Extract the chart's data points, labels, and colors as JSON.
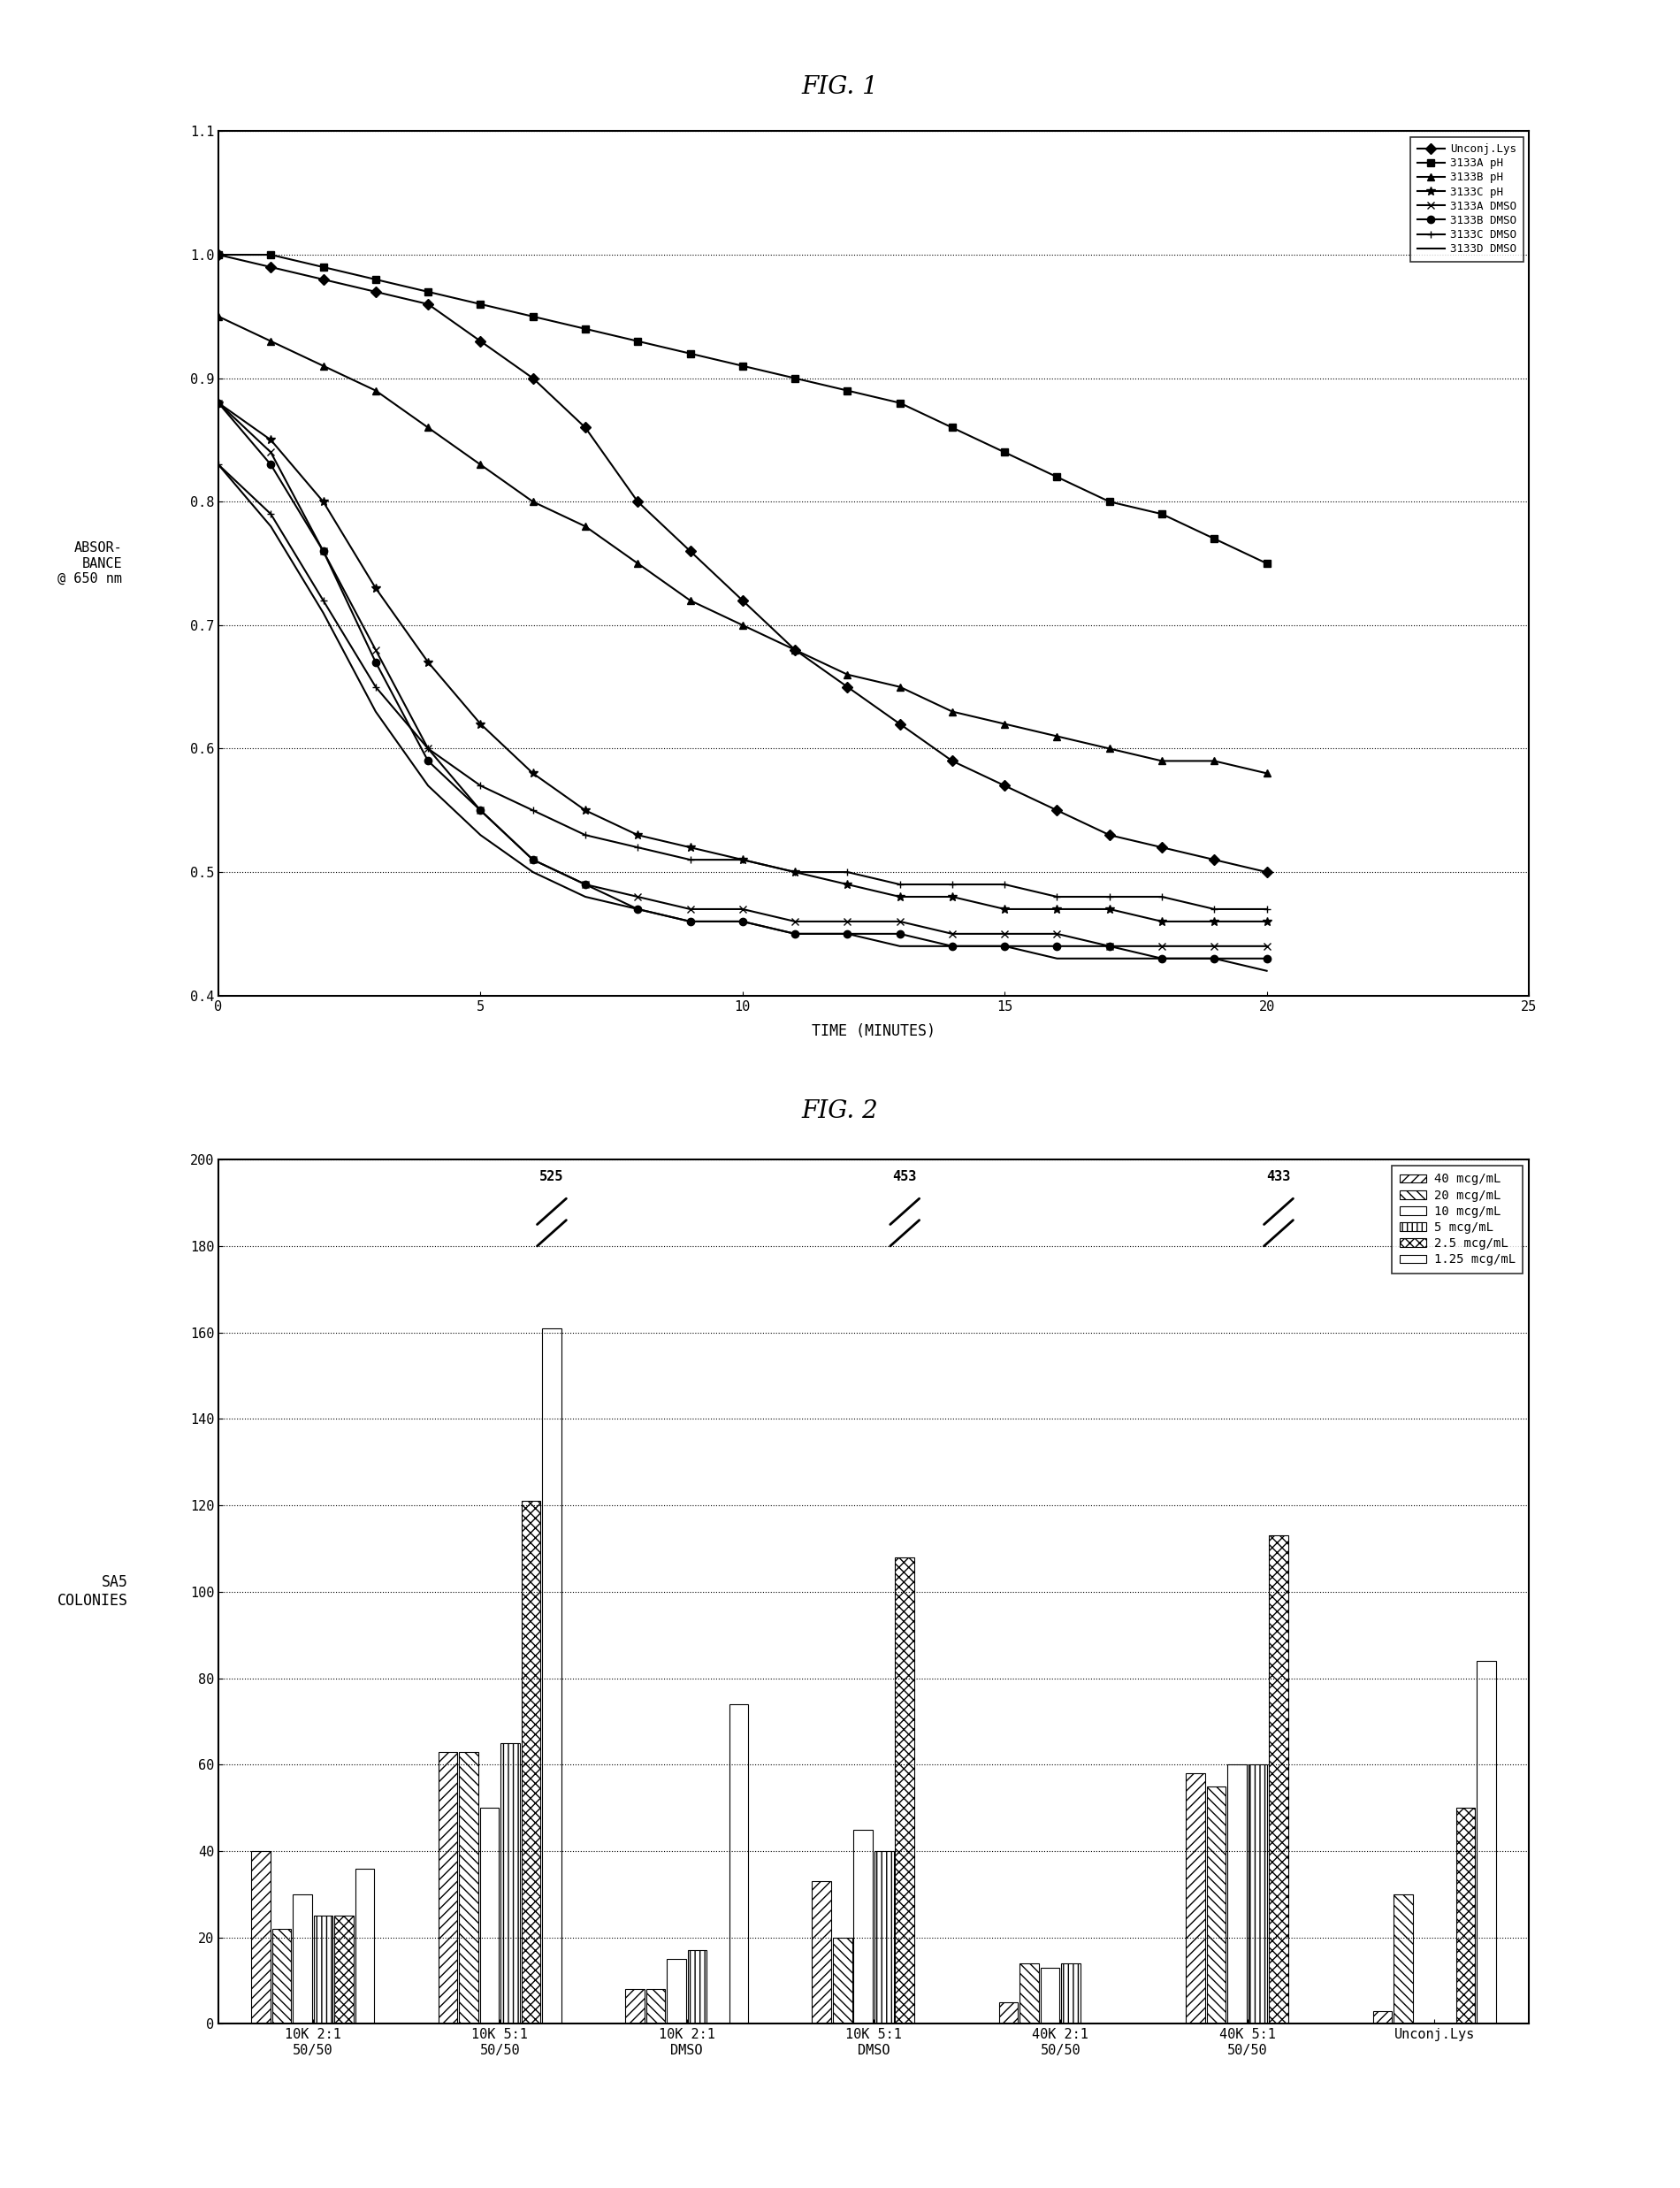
{
  "fig1_title": "FIG. 1",
  "fig2_title": "FIG. 2",
  "fig1_xlabel": "TIME (MINUTES)",
  "fig1_ylabel": "ABSOR-\nBANCE\n@ 650 nm",
  "fig1_xlim": [
    0,
    25
  ],
  "fig1_ylim": [
    0.4,
    1.1
  ],
  "fig1_yticks": [
    0.4,
    0.5,
    0.6,
    0.7,
    0.8,
    0.9,
    1.0,
    1.1
  ],
  "fig1_xticks": [
    0,
    5,
    10,
    15,
    20,
    25
  ],
  "series": [
    {
      "label": "Unconj.Lys",
      "marker": "D",
      "linestyle": "-",
      "color": "black",
      "x": [
        0,
        1,
        2,
        3,
        4,
        5,
        6,
        7,
        8,
        9,
        10,
        11,
        12,
        13,
        14,
        15,
        16,
        17,
        18,
        19,
        20
      ],
      "y": [
        1.0,
        0.99,
        0.98,
        0.97,
        0.96,
        0.93,
        0.9,
        0.86,
        0.8,
        0.76,
        0.72,
        0.68,
        0.65,
        0.62,
        0.59,
        0.57,
        0.55,
        0.53,
        0.52,
        0.51,
        0.5
      ]
    },
    {
      "label": "3133A pH",
      "marker": "s",
      "linestyle": "-",
      "color": "black",
      "x": [
        0,
        1,
        2,
        3,
        4,
        5,
        6,
        7,
        8,
        9,
        10,
        11,
        12,
        13,
        14,
        15,
        16,
        17,
        18,
        19,
        20
      ],
      "y": [
        1.0,
        1.0,
        0.99,
        0.98,
        0.97,
        0.96,
        0.95,
        0.94,
        0.93,
        0.92,
        0.91,
        0.9,
        0.89,
        0.88,
        0.86,
        0.84,
        0.82,
        0.8,
        0.79,
        0.77,
        0.75
      ]
    },
    {
      "label": "3133B pH",
      "marker": "^",
      "linestyle": "-",
      "color": "black",
      "x": [
        0,
        1,
        2,
        3,
        4,
        5,
        6,
        7,
        8,
        9,
        10,
        11,
        12,
        13,
        14,
        15,
        16,
        17,
        18,
        19,
        20
      ],
      "y": [
        0.95,
        0.93,
        0.91,
        0.89,
        0.86,
        0.83,
        0.8,
        0.78,
        0.75,
        0.72,
        0.7,
        0.68,
        0.66,
        0.65,
        0.63,
        0.62,
        0.61,
        0.6,
        0.59,
        0.59,
        0.58
      ]
    },
    {
      "label": "3133C pH",
      "marker": "*",
      "linestyle": "-",
      "color": "black",
      "x": [
        0,
        1,
        2,
        3,
        4,
        5,
        6,
        7,
        8,
        9,
        10,
        11,
        12,
        13,
        14,
        15,
        16,
        17,
        18,
        19,
        20
      ],
      "y": [
        0.88,
        0.85,
        0.8,
        0.73,
        0.67,
        0.62,
        0.58,
        0.55,
        0.53,
        0.52,
        0.51,
        0.5,
        0.49,
        0.48,
        0.48,
        0.47,
        0.47,
        0.47,
        0.46,
        0.46,
        0.46
      ]
    },
    {
      "label": "3133A DMSO",
      "marker": "x",
      "linestyle": "-",
      "color": "black",
      "x": [
        0,
        1,
        2,
        3,
        4,
        5,
        6,
        7,
        8,
        9,
        10,
        11,
        12,
        13,
        14,
        15,
        16,
        17,
        18,
        19,
        20
      ],
      "y": [
        0.88,
        0.84,
        0.76,
        0.68,
        0.6,
        0.55,
        0.51,
        0.49,
        0.48,
        0.47,
        0.47,
        0.46,
        0.46,
        0.46,
        0.45,
        0.45,
        0.45,
        0.44,
        0.44,
        0.44,
        0.44
      ]
    },
    {
      "label": "3133B DMSO",
      "marker": "o",
      "linestyle": "-",
      "color": "black",
      "x": [
        0,
        1,
        2,
        3,
        4,
        5,
        6,
        7,
        8,
        9,
        10,
        11,
        12,
        13,
        14,
        15,
        16,
        17,
        18,
        19,
        20
      ],
      "y": [
        0.88,
        0.83,
        0.76,
        0.67,
        0.59,
        0.55,
        0.51,
        0.49,
        0.47,
        0.46,
        0.46,
        0.45,
        0.45,
        0.45,
        0.44,
        0.44,
        0.44,
        0.44,
        0.43,
        0.43,
        0.43
      ]
    },
    {
      "label": "3133C DMSO",
      "marker": "+",
      "linestyle": "-",
      "color": "black",
      "x": [
        0,
        1,
        2,
        3,
        4,
        5,
        6,
        7,
        8,
        9,
        10,
        11,
        12,
        13,
        14,
        15,
        16,
        17,
        18,
        19,
        20
      ],
      "y": [
        0.83,
        0.79,
        0.72,
        0.65,
        0.6,
        0.57,
        0.55,
        0.53,
        0.52,
        0.51,
        0.51,
        0.5,
        0.5,
        0.49,
        0.49,
        0.49,
        0.48,
        0.48,
        0.48,
        0.47,
        0.47
      ]
    },
    {
      "label": "3133D DMSO",
      "marker": "none",
      "linestyle": "-",
      "color": "black",
      "x": [
        0,
        1,
        2,
        3,
        4,
        5,
        6,
        7,
        8,
        9,
        10,
        11,
        12,
        13,
        14,
        15,
        16,
        17,
        18,
        19,
        20
      ],
      "y": [
        0.83,
        0.78,
        0.71,
        0.63,
        0.57,
        0.53,
        0.5,
        0.48,
        0.47,
        0.46,
        0.46,
        0.45,
        0.45,
        0.44,
        0.44,
        0.44,
        0.43,
        0.43,
        0.43,
        0.43,
        0.42
      ]
    }
  ],
  "fig2_ylabel": "SA5\nCOLONIES",
  "fig2_ylim": [
    0,
    200
  ],
  "fig2_yticks": [
    0,
    20,
    40,
    60,
    80,
    100,
    120,
    140,
    160,
    180,
    200
  ],
  "fig2_categories": [
    "10K 2:1\n50/50",
    "10K 5:1\n50/50",
    "10K 2:1\nDMSO",
    "10K 5:1\nDMSO",
    "40K 2:1\n50/50",
    "40K 5:1\n50/50",
    "Unconj.Lys"
  ],
  "fig2_break_bars": [
    {
      "category_idx": 1,
      "bar_idx": 5,
      "value": 525
    },
    {
      "category_idx": 3,
      "bar_idx": 4,
      "value": 453
    },
    {
      "category_idx": 5,
      "bar_idx": 4,
      "value": 433
    }
  ],
  "bar_groups": [
    {
      "label": "40 mcg/mL",
      "hatch": "///",
      "values": [
        40,
        63,
        8,
        33,
        5,
        58,
        3
      ]
    },
    {
      "label": "20 mcg/mL",
      "hatch": "\\\\\\",
      "values": [
        22,
        63,
        8,
        20,
        14,
        55,
        30
      ]
    },
    {
      "label": "10 mcg/mL",
      "hatch": "",
      "values": [
        30,
        50,
        15,
        45,
        13,
        60,
        0
      ]
    },
    {
      "label": "5 mcg/mL",
      "hatch": "|||",
      "values": [
        25,
        65,
        17,
        40,
        14,
        60,
        0
      ]
    },
    {
      "label": "2.5 mcg/mL",
      "hatch": "xxx",
      "values": [
        25,
        121,
        0,
        108,
        0,
        113,
        50
      ]
    },
    {
      "label": "1.25 mcg/mL",
      "hatch": "",
      "values": [
        36,
        161,
        74,
        0,
        0,
        0,
        84
      ]
    }
  ]
}
